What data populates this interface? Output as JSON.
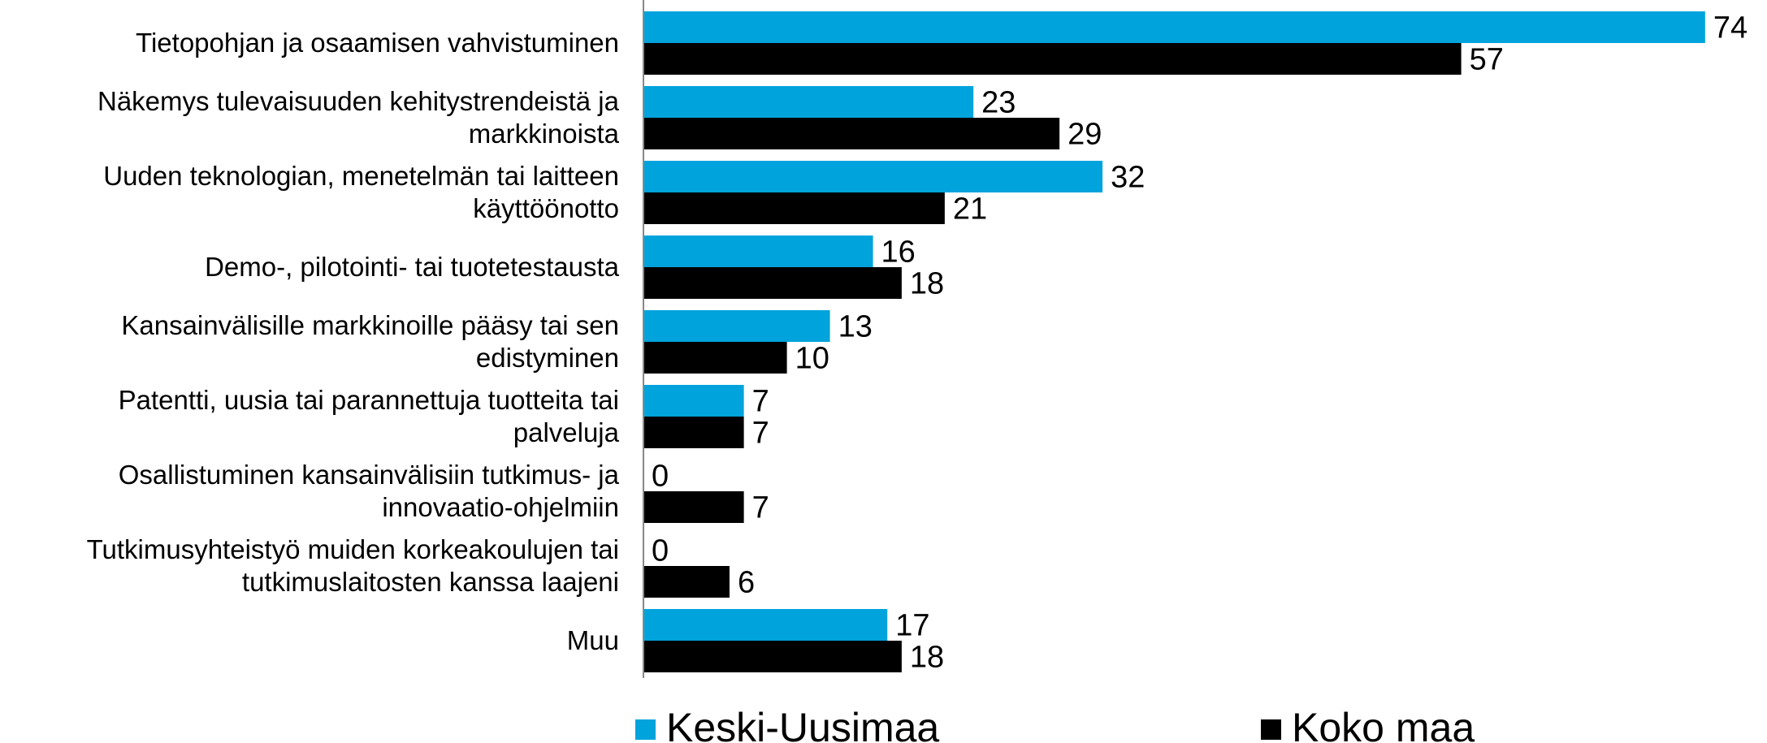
{
  "chart_data": {
    "type": "hbar",
    "categories": [
      "Tietopohjan ja osaamisen vahvistuminen",
      "Näkemys tulevaisuuden kehitystrendeistä ja markkinoista",
      "Uuden teknologian, menetelmän tai laitteen käyttöönotto",
      "Demo-, pilotointi- tai tuotetestausta",
      "Kansainvälisille markkinoille pääsy tai sen edistyminen",
      "Patentti, uusia tai parannettuja tuotteita tai palveluja",
      "Osallistuminen kansainvälisiin tutkimus- ja innovaatio-ohjelmiin",
      "Tutkimusyhteistyö muiden korkeakoulujen tai tutkimuslaitosten kanssa laajeni",
      "Muu"
    ],
    "series": [
      {
        "name": "Keski-Uusimaa",
        "color": "#00a3dc",
        "values": [
          74,
          23,
          32,
          16,
          13,
          7,
          0,
          0,
          17
        ]
      },
      {
        "name": "Koko maa",
        "color": "#000000",
        "values": [
          57,
          29,
          21,
          18,
          10,
          7,
          7,
          6,
          18
        ]
      }
    ],
    "xlim": [
      0,
      76
    ],
    "legend": "bottom"
  }
}
